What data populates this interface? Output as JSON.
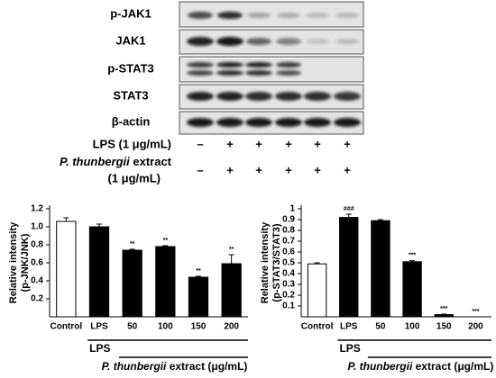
{
  "blot": {
    "rows": [
      "p-JAK1",
      "JAK1",
      "p-STAT3",
      "STAT3",
      "β-actin"
    ],
    "treatments": [
      {
        "label": "LPS (1 μg/mL)",
        "signs": [
          "–",
          "+",
          "+",
          "+",
          "+",
          "+"
        ]
      },
      {
        "label_italic": "P. thunbergii",
        "label": " extract",
        "label_line2": "(1 μg/mL)",
        "signs": [
          "–",
          "+",
          "+",
          "+",
          "+",
          "+"
        ]
      }
    ]
  },
  "chart_data": [
    {
      "type": "bar",
      "ylabel": [
        "Relative intensity",
        "(p-JNK/JNK)"
      ],
      "categories": [
        "Control",
        "LPS",
        "50",
        "100",
        "150",
        "200"
      ],
      "values": [
        1.06,
        1.0,
        0.74,
        0.78,
        0.44,
        0.59
      ],
      "errors": [
        0.04,
        0.03,
        0.01,
        0.01,
        0.01,
        0.1
      ],
      "annotations": [
        null,
        null,
        "**",
        "**",
        "**",
        "**"
      ],
      "colors": [
        "#ffffff",
        "#000000",
        "#000000",
        "#000000",
        "#000000",
        "#000000"
      ],
      "ylim": [
        0,
        1.2
      ],
      "yticks": [
        0.2,
        0.4,
        0.6,
        0.8,
        {
          "value": 1,
          "label": "1.0"
        },
        1.2
      ],
      "group_labels": {
        "lps": "LPS",
        "extract_italic": "P. thunbergii",
        "extract_rest": " extract (μg/mL)"
      }
    },
    {
      "type": "bar",
      "ylabel": [
        "Relative intensity",
        "(p-STAT3/STAT3)"
      ],
      "categories": [
        "Control",
        "LPS",
        "50",
        "100",
        "150",
        "200"
      ],
      "values": [
        0.49,
        0.92,
        0.89,
        0.51,
        0.02,
        0
      ],
      "errors": [
        0.01,
        0.03,
        0.01,
        0.01,
        0.005,
        0
      ],
      "annotations": [
        null,
        "###",
        null,
        "***",
        "***",
        "***"
      ],
      "colors": [
        "#ffffff",
        "#000000",
        "#000000",
        "#000000",
        "#000000",
        "#000000"
      ],
      "ylim": [
        0,
        1
      ],
      "yticks": [
        0.1,
        0.2,
        0.3,
        0.4,
        0.5,
        0.6,
        0.7,
        0.8,
        0.9,
        1
      ],
      "group_labels": {
        "lps": "LPS",
        "extract_italic": "P. thunbergii",
        "extract_rest": " extract (μg/mL)"
      }
    }
  ]
}
